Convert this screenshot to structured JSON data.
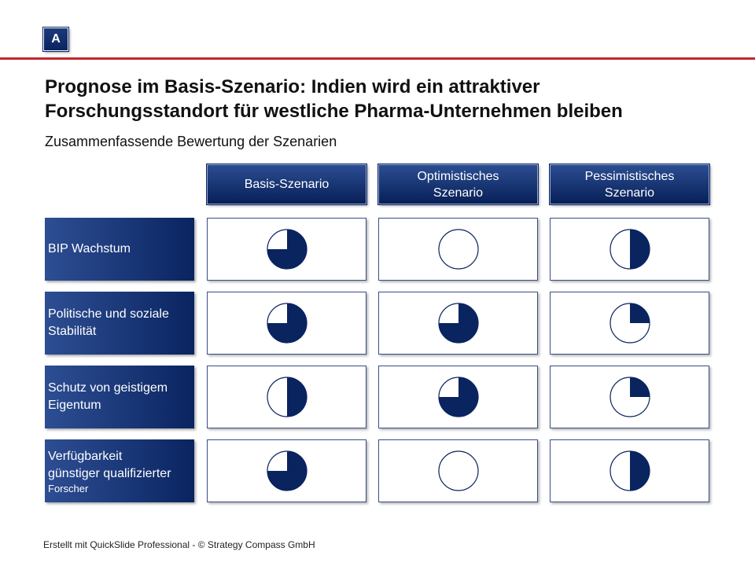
{
  "badge": "A",
  "title_line1": "Prognose im Basis-Szenario: Indien wird ein attraktiver",
  "title_line2": "Forschungsstandort für westliche Pharma-Unternehmen bleiben",
  "subtitle": "Zusammenfassende Bewertung der Szenarien",
  "columns": [
    {
      "line1": "Basis-Szenario",
      "line2": ""
    },
    {
      "line1": "Optimistisches",
      "line2": "Szenario"
    },
    {
      "line1": "Pessimistisches",
      "line2": "Szenario"
    }
  ],
  "rows": [
    {
      "line1": "BIP Wachstum",
      "line2": "",
      "line3": ""
    },
    {
      "line1": "Politische und soziale",
      "line2": "Stabilität",
      "line3": ""
    },
    {
      "line1": "Schutz von geistigem",
      "line2": "Eigentum",
      "line3": ""
    },
    {
      "line1": "Verfügbarkeit",
      "line2": "günstiger qualifizierter",
      "line3": "Forscher"
    }
  ],
  "ratings": [
    [
      0.75,
      0.0,
      0.5
    ],
    [
      0.75,
      0.75,
      0.25
    ],
    [
      0.5,
      0.75,
      0.25
    ],
    [
      0.75,
      0.0,
      0.5
    ]
  ],
  "colors": {
    "fill": "#0a2460",
    "accent_red": "#c0282d",
    "outline": "#0a2460"
  },
  "footer": "Erstellt mit QuickSlide Professional - © Strategy Compass GmbH"
}
